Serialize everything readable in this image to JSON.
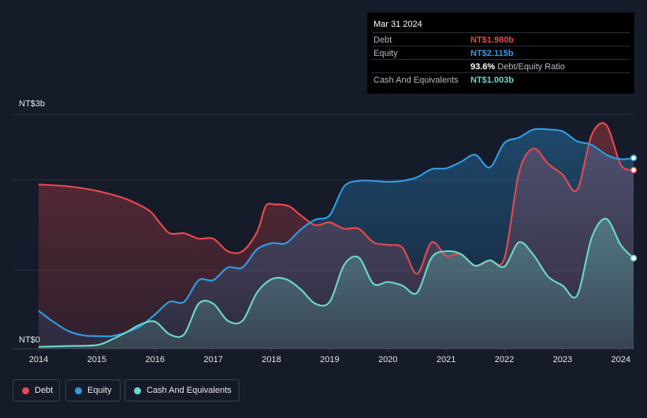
{
  "colors": {
    "background": "#151b29",
    "debt": "#e5484d",
    "equity": "#2f9be3",
    "cash": "#6ad6c8"
  },
  "tooltip": {
    "date": "Mar 31 2024",
    "rows": [
      {
        "label": "Debt",
        "value": "NT$1.980b",
        "color": "#e5484d"
      },
      {
        "label": "Equity",
        "value": "NT$2.115b",
        "color": "#2f9be3"
      },
      {
        "ratio_value": "93.6%",
        "ratio_label": "Debt/Equity Ratio"
      },
      {
        "label": "Cash And Equivalents",
        "value": "NT$1.003b",
        "color": "#6ad6c8"
      }
    ]
  },
  "legend": [
    {
      "label": "Debt",
      "color": "#e5484d"
    },
    {
      "label": "Equity",
      "color": "#2f9be3"
    },
    {
      "label": "Cash And Equivalents",
      "color": "#6ad6c8"
    }
  ],
  "chart_data": {
    "type": "area",
    "title": "",
    "xlabel": "",
    "ylabel": "",
    "y_top_label": "NT$3b",
    "y_bottom_label": "NT$0",
    "xlim": [
      2013.7,
      2024.22
    ],
    "ylim": [
      0,
      2.6
    ],
    "x_ticks": [
      2014,
      2015,
      2016,
      2017,
      2018,
      2019,
      2020,
      2021,
      2022,
      2023,
      2024
    ],
    "x_tick_labels": [
      "2014",
      "2015",
      "2016",
      "2017",
      "2018",
      "2019",
      "2020",
      "2021",
      "2022",
      "2023",
      "2024"
    ],
    "grid": true,
    "legend_position": "bottom-left",
    "series": [
      {
        "name": "Debt",
        "key": "debt",
        "points": [
          [
            2014.0,
            1.82
          ],
          [
            2014.5,
            1.8
          ],
          [
            2015.0,
            1.75
          ],
          [
            2015.5,
            1.66
          ],
          [
            2015.9,
            1.53
          ],
          [
            2016.05,
            1.42
          ],
          [
            2016.25,
            1.28
          ],
          [
            2016.5,
            1.28
          ],
          [
            2016.75,
            1.22
          ],
          [
            2017.0,
            1.22
          ],
          [
            2017.25,
            1.08
          ],
          [
            2017.5,
            1.08
          ],
          [
            2017.75,
            1.29
          ],
          [
            2017.9,
            1.58
          ],
          [
            2018.05,
            1.6
          ],
          [
            2018.3,
            1.58
          ],
          [
            2018.5,
            1.48
          ],
          [
            2018.75,
            1.37
          ],
          [
            2019.0,
            1.4
          ],
          [
            2019.25,
            1.33
          ],
          [
            2019.5,
            1.33
          ],
          [
            2019.75,
            1.18
          ],
          [
            2020.0,
            1.15
          ],
          [
            2020.25,
            1.12
          ],
          [
            2020.5,
            0.83
          ],
          [
            2020.75,
            1.18
          ],
          [
            2021.0,
            1.03
          ],
          [
            2021.25,
            1.05
          ],
          [
            2021.5,
            0.92
          ],
          [
            2021.75,
            0.98
          ],
          [
            2022.0,
            1.0
          ],
          [
            2022.25,
            1.95
          ],
          [
            2022.5,
            2.22
          ],
          [
            2022.75,
            2.05
          ],
          [
            2023.0,
            1.93
          ],
          [
            2023.25,
            1.76
          ],
          [
            2023.5,
            2.37
          ],
          [
            2023.75,
            2.48
          ],
          [
            2024.0,
            2.04
          ],
          [
            2024.22,
            1.98
          ]
        ]
      },
      {
        "name": "Equity",
        "key": "equity",
        "points": [
          [
            2014.0,
            0.42
          ],
          [
            2014.25,
            0.3
          ],
          [
            2014.5,
            0.2
          ],
          [
            2014.75,
            0.15
          ],
          [
            2015.0,
            0.14
          ],
          [
            2015.25,
            0.14
          ],
          [
            2015.5,
            0.18
          ],
          [
            2015.75,
            0.25
          ],
          [
            2016.0,
            0.38
          ],
          [
            2016.25,
            0.52
          ],
          [
            2016.5,
            0.52
          ],
          [
            2016.75,
            0.76
          ],
          [
            2017.0,
            0.76
          ],
          [
            2017.25,
            0.9
          ],
          [
            2017.5,
            0.9
          ],
          [
            2017.75,
            1.1
          ],
          [
            2018.0,
            1.17
          ],
          [
            2018.25,
            1.17
          ],
          [
            2018.5,
            1.32
          ],
          [
            2018.75,
            1.43
          ],
          [
            2019.0,
            1.48
          ],
          [
            2019.25,
            1.8
          ],
          [
            2019.5,
            1.86
          ],
          [
            2019.75,
            1.86
          ],
          [
            2020.0,
            1.85
          ],
          [
            2020.25,
            1.86
          ],
          [
            2020.5,
            1.9
          ],
          [
            2020.75,
            1.99
          ],
          [
            2021.0,
            2.0
          ],
          [
            2021.25,
            2.07
          ],
          [
            2021.5,
            2.15
          ],
          [
            2021.75,
            2.01
          ],
          [
            2022.0,
            2.28
          ],
          [
            2022.25,
            2.34
          ],
          [
            2022.5,
            2.43
          ],
          [
            2022.75,
            2.43
          ],
          [
            2023.0,
            2.41
          ],
          [
            2023.25,
            2.3
          ],
          [
            2023.5,
            2.26
          ],
          [
            2023.75,
            2.15
          ],
          [
            2024.0,
            2.1
          ],
          [
            2024.22,
            2.115
          ]
        ]
      },
      {
        "name": "Cash And Equivalents",
        "key": "cash",
        "points": [
          [
            2014.0,
            0.02
          ],
          [
            2014.5,
            0.03
          ],
          [
            2015.0,
            0.04
          ],
          [
            2015.25,
            0.1
          ],
          [
            2015.5,
            0.18
          ],
          [
            2015.75,
            0.27
          ],
          [
            2016.0,
            0.3
          ],
          [
            2016.25,
            0.16
          ],
          [
            2016.5,
            0.16
          ],
          [
            2016.75,
            0.5
          ],
          [
            2017.0,
            0.5
          ],
          [
            2017.25,
            0.31
          ],
          [
            2017.5,
            0.31
          ],
          [
            2017.75,
            0.62
          ],
          [
            2018.0,
            0.77
          ],
          [
            2018.25,
            0.77
          ],
          [
            2018.5,
            0.66
          ],
          [
            2018.75,
            0.5
          ],
          [
            2019.0,
            0.52
          ],
          [
            2019.25,
            0.93
          ],
          [
            2019.5,
            1.01
          ],
          [
            2019.75,
            0.72
          ],
          [
            2020.0,
            0.74
          ],
          [
            2020.25,
            0.7
          ],
          [
            2020.5,
            0.62
          ],
          [
            2020.75,
            1.01
          ],
          [
            2021.0,
            1.08
          ],
          [
            2021.25,
            1.05
          ],
          [
            2021.5,
            0.92
          ],
          [
            2021.75,
            0.98
          ],
          [
            2022.0,
            0.91
          ],
          [
            2022.25,
            1.18
          ],
          [
            2022.5,
            1.04
          ],
          [
            2022.75,
            0.8
          ],
          [
            2023.0,
            0.7
          ],
          [
            2023.25,
            0.59
          ],
          [
            2023.5,
            1.23
          ],
          [
            2023.75,
            1.44
          ],
          [
            2024.0,
            1.15
          ],
          [
            2024.22,
            1.003
          ]
        ]
      }
    ]
  }
}
